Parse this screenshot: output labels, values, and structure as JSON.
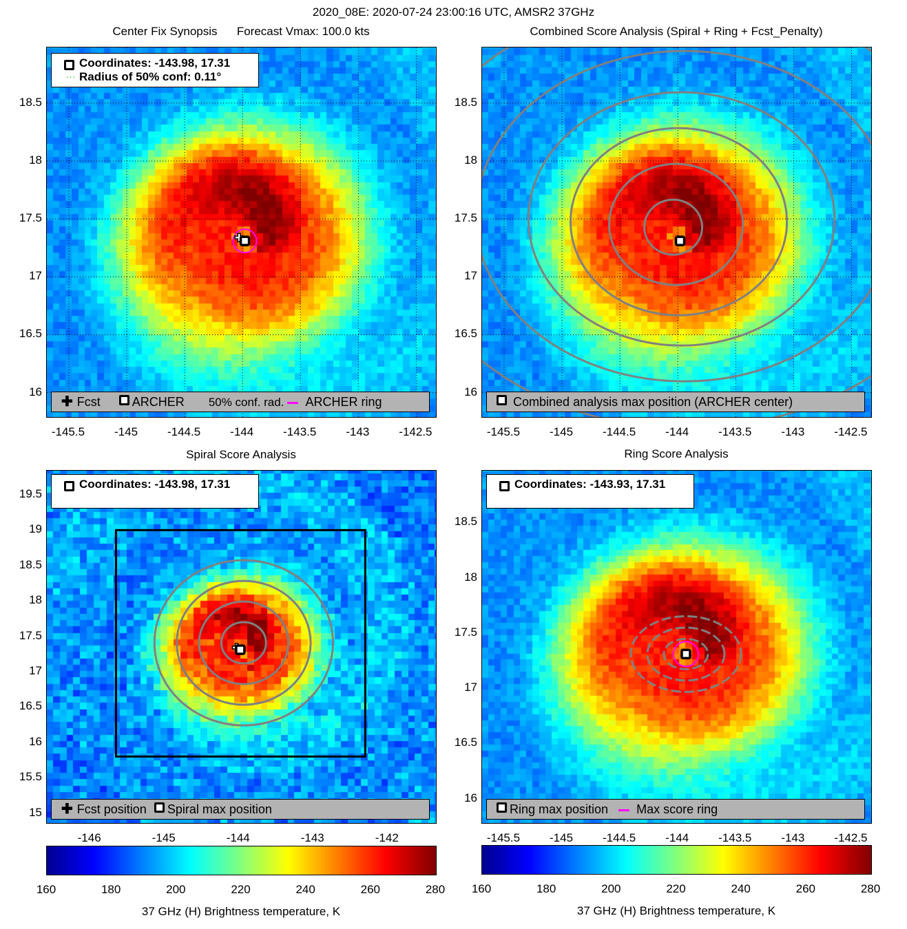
{
  "suptitle": "2020_08E: 2020-07-24 23:00:16 UTC, AMSR2 37GHz",
  "colors": {
    "ring": "#ff00ff",
    "contour": "#808080",
    "legend_bg": "#b3b3b3",
    "conf": "#00cc00"
  },
  "chart_data": [
    {
      "type": "heatmap",
      "id": "center_fix",
      "title": "Center Fix Synopsis      Forecast Vmax: 100.0 kts",
      "xlim": [
        -145.69,
        -142.33
      ],
      "ylim": [
        15.79,
        18.98
      ],
      "xticks": [
        "-145.5",
        "-145",
        "-144.5",
        "-144",
        "-143.5",
        "-143",
        "-142.5"
      ],
      "yticks": [
        "16",
        "16.5",
        "17",
        "17.5",
        "18",
        "18.5"
      ],
      "grid": true,
      "info": [
        "Coordinates: -143.98, 17.31",
        "Radius of 50% conf: 0.11°"
      ],
      "legend": [
        "Fcst",
        "ARCHER",
        "50% conf. rad.",
        "ARCHER ring"
      ],
      "center": [
        -143.98,
        17.31
      ],
      "fcst": [
        -144.03,
        17.34
      ]
    },
    {
      "type": "heatmap",
      "id": "combined",
      "title": "Combined Score Analysis (Spiral + Ring + Fcst_Penalty)",
      "xlim": [
        -145.69,
        -142.33
      ],
      "ylim": [
        15.79,
        18.98
      ],
      "xticks": [
        "-145.5",
        "-145",
        "-144.5",
        "-144",
        "-143.5",
        "-143",
        "-142.5"
      ],
      "yticks": [
        "16",
        "16.5",
        "17",
        "17.5",
        "18",
        "18.5"
      ],
      "grid": true,
      "legend": [
        "Combined analysis max position (ARCHER center)"
      ],
      "center": [
        -143.98,
        17.31
      ]
    },
    {
      "type": "heatmap",
      "id": "spiral",
      "title": "Spiral Score Analysis",
      "xlim": [
        -146.58,
        -141.35
      ],
      "ylim": [
        14.86,
        19.84
      ],
      "xticks": [
        "-146",
        "-145",
        "-144",
        "-143",
        "-142"
      ],
      "yticks": [
        "15",
        "15.5",
        "16",
        "16.5",
        "17",
        "17.5",
        "18",
        "18.5",
        "19",
        "19.5"
      ],
      "grid": false,
      "info": [
        "Coordinates: -143.98, 17.31"
      ],
      "legend": [
        "Fcst position",
        "Spiral max position"
      ],
      "center": [
        -143.98,
        17.31
      ],
      "fcst": [
        -144.03,
        17.34
      ]
    },
    {
      "type": "heatmap",
      "id": "ring",
      "title": "Ring Score Analysis",
      "xlim": [
        -145.69,
        -142.33
      ],
      "ylim": [
        15.78,
        18.97
      ],
      "xticks": [
        "-145.5",
        "-145",
        "-144.5",
        "-144",
        "-143.5",
        "-143",
        "-142.5"
      ],
      "yticks": [
        "16",
        "16.5",
        "17",
        "17.5",
        "18",
        "18.5"
      ],
      "grid": false,
      "info": [
        "Coordinates: -143.93, 17.31"
      ],
      "legend": [
        "Ring max position",
        "Max score ring"
      ],
      "center": [
        -143.93,
        17.31
      ]
    }
  ],
  "colorbar": {
    "ticks": [
      "160",
      "180",
      "200",
      "220",
      "240",
      "260",
      "280"
    ],
    "range": [
      160,
      280
    ],
    "label": "37 GHz (H) Brightness temperature, K"
  }
}
